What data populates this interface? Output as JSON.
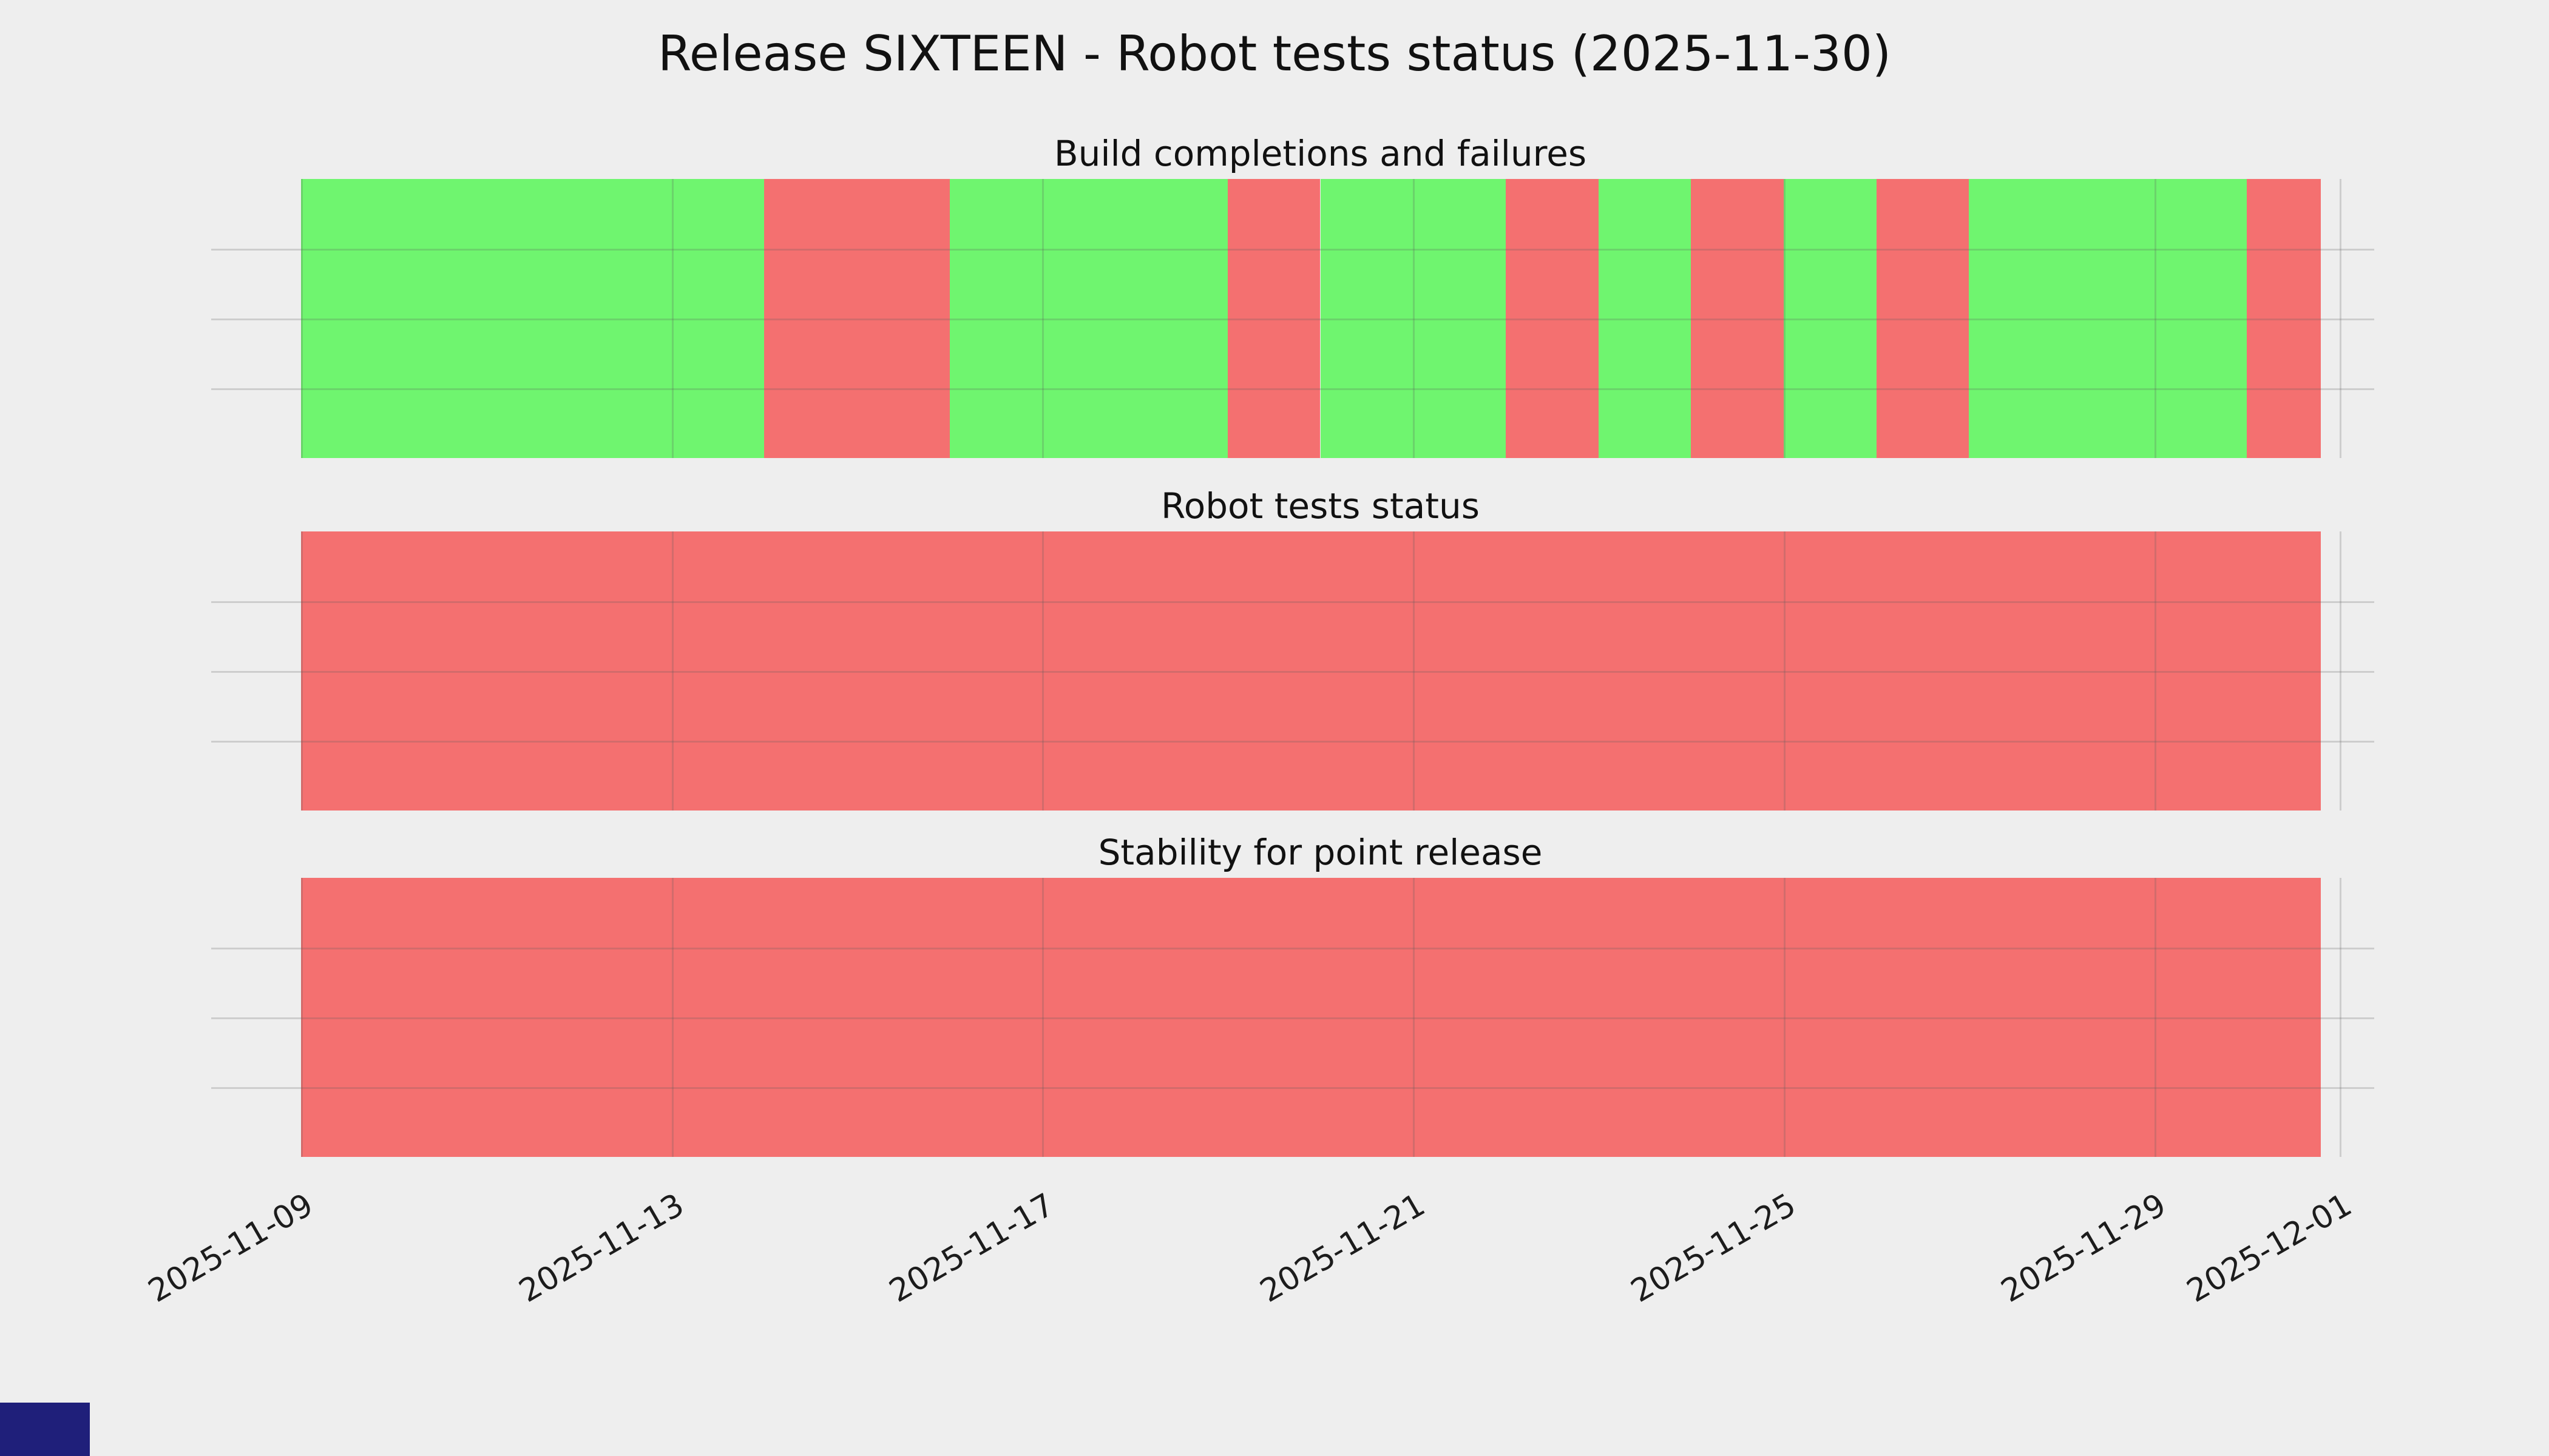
{
  "title": "Release SIXTEEN - Robot tests status (2025-11-30)",
  "colors": {
    "pass": "#6ff56f",
    "fail": "#f47070",
    "background": "#eeeeee",
    "grid": "#d6d6d6",
    "corner_box": "#1f1f7a"
  },
  "x_ticks": [
    "2025-11-09",
    "2025-11-13",
    "2025-11-17",
    "2025-11-21",
    "2025-11-25",
    "2025-11-29",
    "2025-12-01"
  ],
  "chart_data": [
    {
      "type": "timeline-status-bar",
      "title": "Build completions and failures",
      "x_range": [
        "2025-11-09",
        "2025-12-01"
      ],
      "legend_position": "none",
      "days": [
        {
          "date": "2025-11-09",
          "status": "pass"
        },
        {
          "date": "2025-11-10",
          "status": "pass"
        },
        {
          "date": "2025-11-11",
          "status": "pass"
        },
        {
          "date": "2025-11-12",
          "status": "pass"
        },
        {
          "date": "2025-11-13",
          "status": "pass"
        },
        {
          "date": "2025-11-14",
          "status": "fail"
        },
        {
          "date": "2025-11-15",
          "status": "fail"
        },
        {
          "date": "2025-11-16",
          "status": "pass"
        },
        {
          "date": "2025-11-17",
          "status": "pass"
        },
        {
          "date": "2025-11-18",
          "status": "pass"
        },
        {
          "date": "2025-11-19",
          "status": "fail"
        },
        {
          "date": "2025-11-20",
          "status": "pass"
        },
        {
          "date": "2025-11-21",
          "status": "pass"
        },
        {
          "date": "2025-11-22",
          "status": "fail"
        },
        {
          "date": "2025-11-23",
          "status": "pass"
        },
        {
          "date": "2025-11-24",
          "status": "fail"
        },
        {
          "date": "2025-11-25",
          "status": "pass"
        },
        {
          "date": "2025-11-26",
          "status": "fail"
        },
        {
          "date": "2025-11-27",
          "status": "pass"
        },
        {
          "date": "2025-11-28",
          "status": "pass"
        },
        {
          "date": "2025-11-29",
          "status": "pass"
        },
        {
          "date": "2025-11-30",
          "status": "fail"
        }
      ]
    },
    {
      "type": "timeline-status-bar",
      "title": "Robot tests status",
      "x_range": [
        "2025-11-09",
        "2025-12-01"
      ],
      "legend_position": "none",
      "days": [
        {
          "date": "2025-11-09",
          "status": "fail"
        },
        {
          "date": "2025-11-10",
          "status": "fail"
        },
        {
          "date": "2025-11-11",
          "status": "fail"
        },
        {
          "date": "2025-11-12",
          "status": "fail"
        },
        {
          "date": "2025-11-13",
          "status": "fail"
        },
        {
          "date": "2025-11-14",
          "status": "fail"
        },
        {
          "date": "2025-11-15",
          "status": "fail"
        },
        {
          "date": "2025-11-16",
          "status": "fail"
        },
        {
          "date": "2025-11-17",
          "status": "fail"
        },
        {
          "date": "2025-11-18",
          "status": "fail"
        },
        {
          "date": "2025-11-19",
          "status": "fail"
        },
        {
          "date": "2025-11-20",
          "status": "fail"
        },
        {
          "date": "2025-11-21",
          "status": "fail"
        },
        {
          "date": "2025-11-22",
          "status": "fail"
        },
        {
          "date": "2025-11-23",
          "status": "fail"
        },
        {
          "date": "2025-11-24",
          "status": "fail"
        },
        {
          "date": "2025-11-25",
          "status": "fail"
        },
        {
          "date": "2025-11-26",
          "status": "fail"
        },
        {
          "date": "2025-11-27",
          "status": "fail"
        },
        {
          "date": "2025-11-28",
          "status": "fail"
        },
        {
          "date": "2025-11-29",
          "status": "fail"
        },
        {
          "date": "2025-11-30",
          "status": "fail"
        }
      ]
    },
    {
      "type": "timeline-status-bar",
      "title": "Stability for point release",
      "x_range": [
        "2025-11-09",
        "2025-12-01"
      ],
      "legend_position": "none",
      "days": [
        {
          "date": "2025-11-09",
          "status": "fail"
        },
        {
          "date": "2025-11-10",
          "status": "fail"
        },
        {
          "date": "2025-11-11",
          "status": "fail"
        },
        {
          "date": "2025-11-12",
          "status": "fail"
        },
        {
          "date": "2025-11-13",
          "status": "fail"
        },
        {
          "date": "2025-11-14",
          "status": "fail"
        },
        {
          "date": "2025-11-15",
          "status": "fail"
        },
        {
          "date": "2025-11-16",
          "status": "fail"
        },
        {
          "date": "2025-11-17",
          "status": "fail"
        },
        {
          "date": "2025-11-18",
          "status": "fail"
        },
        {
          "date": "2025-11-19",
          "status": "fail"
        },
        {
          "date": "2025-11-20",
          "status": "fail"
        },
        {
          "date": "2025-11-21",
          "status": "fail"
        },
        {
          "date": "2025-11-22",
          "status": "fail"
        },
        {
          "date": "2025-11-23",
          "status": "fail"
        },
        {
          "date": "2025-11-24",
          "status": "fail"
        },
        {
          "date": "2025-11-25",
          "status": "fail"
        },
        {
          "date": "2025-11-26",
          "status": "fail"
        },
        {
          "date": "2025-11-27",
          "status": "fail"
        },
        {
          "date": "2025-11-28",
          "status": "fail"
        },
        {
          "date": "2025-11-29",
          "status": "fail"
        },
        {
          "date": "2025-11-30",
          "status": "fail"
        }
      ]
    }
  ]
}
